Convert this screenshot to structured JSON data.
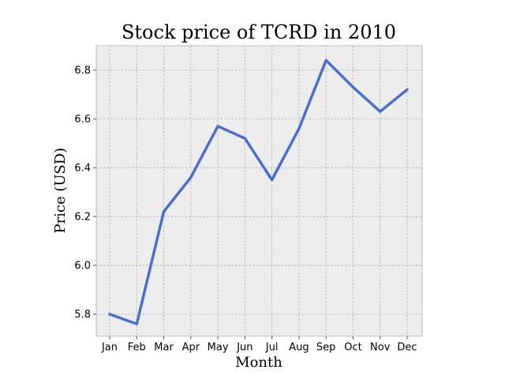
{
  "chart_data": {
    "type": "line",
    "title": "Stock price of TCRD in 2010",
    "xlabel": "Month",
    "ylabel": "Price (USD)",
    "categories": [
      "Jan",
      "Feb",
      "Mar",
      "Apr",
      "May",
      "Jun",
      "Jul",
      "Aug",
      "Sep",
      "Oct",
      "Nov",
      "Dec"
    ],
    "series": [
      {
        "values": [
          5.8,
          5.76,
          6.22,
          6.36,
          6.57,
          6.52,
          6.35,
          6.56,
          6.84,
          6.73,
          6.63,
          6.72
        ]
      }
    ],
    "ylim": [
      5.71,
      6.9
    ],
    "yticks": [
      "5.8",
      "6.0",
      "6.2",
      "6.4",
      "6.6",
      "6.8"
    ],
    "grid": true,
    "legend": "none",
    "colors": {
      "plot_background": "#EDEDED",
      "line": "#4C6FCF",
      "grid": "#B0B0B0",
      "frame": "#BEBEBE"
    }
  }
}
